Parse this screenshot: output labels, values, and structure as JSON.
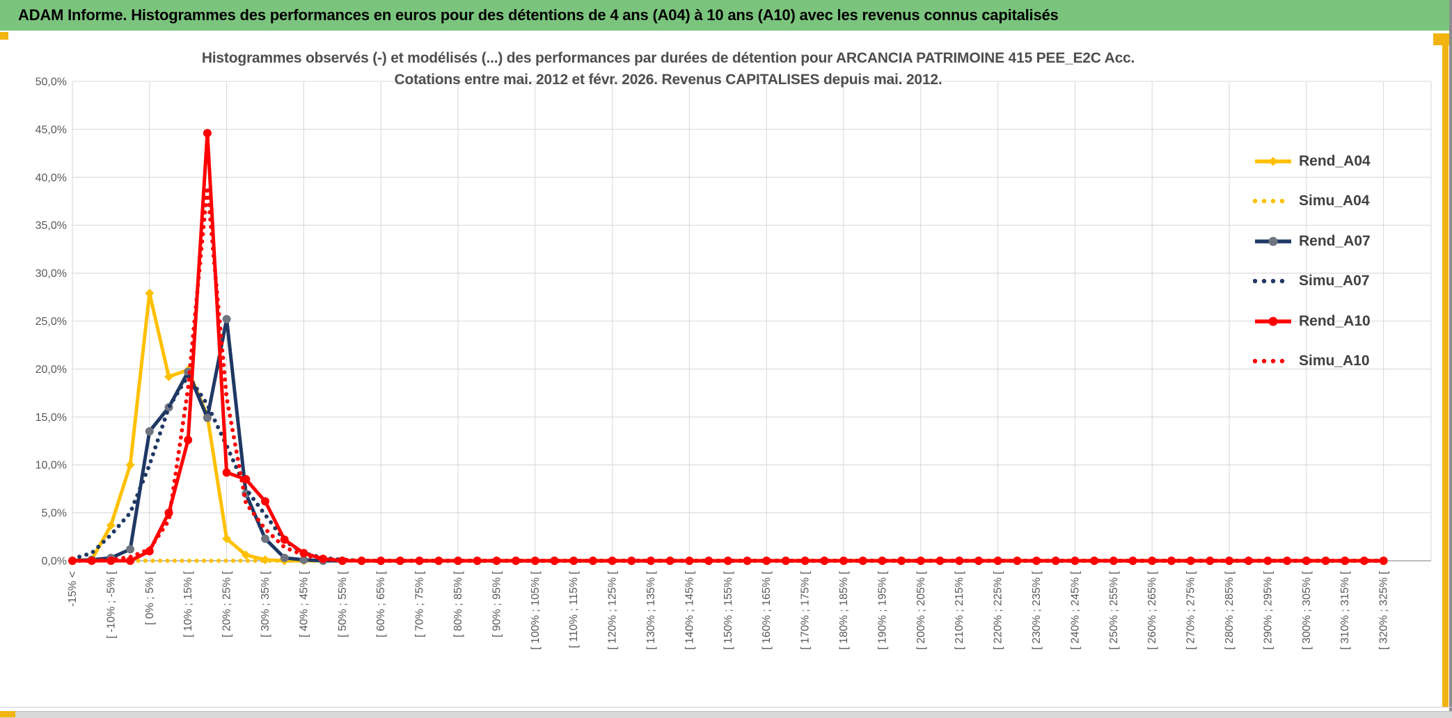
{
  "header": {
    "title": "ADAM Informe. Histogrammes des performances en euros pour des détentions de 4 ans (A04) à 10 ans (A10) avec les revenus connus capitalisés"
  },
  "chart_data": {
    "type": "line",
    "title_line1": "Histogrammes observés (-) et modélisés (...) des performances par durées de détention pour ARCANCIA PATRIMOINE 415 PEE_E2C Acc.",
    "title_line2": "Cotations entre mai. 2012 et févr. 2026. Revenus CAPITALISES depuis mai. 2012.",
    "ylim": [
      0,
      50
    ],
    "y_tick_step": 5,
    "y_tick_labels": [
      "0,0%",
      "5,0%",
      "10,0%",
      "15,0%",
      "20,0%",
      "25,0%",
      "30,0%",
      "35,0%",
      "40,0%",
      "45,0%",
      "50,0%"
    ],
    "grid": true,
    "legend_position": "right",
    "bucket_count": 69,
    "x_label_every": 2,
    "x_gridline_every": 4,
    "values_padded_with_zeros_to": 69,
    "x_labels": [
      "-15% <",
      "[ -10% ; -5% [",
      "[ 0% ; 5% [",
      "[ 10% ; 15% [",
      "[ 20% ; 25% [",
      "[ 30% ; 35% [",
      "[ 40% ; 45% [",
      "[ 50% ; 55% [",
      "[ 60% ; 65% [",
      "[ 70% ; 75% [",
      "[ 80% ; 85% [",
      "[ 90% ; 95% [",
      "[ 100% ; 105% [",
      "[ 110% ; 115% [",
      "[ 120% ; 125% [",
      "[ 130% ; 135% [",
      "[ 140% ; 145% [",
      "[ 150% ; 155% [",
      "[ 160% ; 165% [",
      "[ 170% ; 175% [",
      "[ 180% ; 185% [",
      "[ 190% ; 195% [",
      "[ 200% ; 205% [",
      "[ 210% ; 215% [",
      "[ 220% ; 225% [",
      "[ 230% ; 235% [",
      "[ 240% ; 245% [",
      "[ 250% ; 255% [",
      "[ 260% ; 265% [",
      "[ 270% ; 275% [",
      "[ 280% ; 285% [",
      "[ 290% ; 295% [",
      "[ 300% ; 305% [",
      "[ 310% ; 315% [",
      "[ 320% ; 325% ["
    ],
    "series": [
      {
        "name": "Rend_A04",
        "color": "#FFC000",
        "style": "solid",
        "marker": "diamond",
        "marker_color": "#FFC000",
        "values": [
          0,
          0.1,
          3.7,
          10,
          27.9,
          19.2,
          19.9,
          15.1,
          2.3,
          0.6,
          0.1
        ]
      },
      {
        "name": "Simu_A04",
        "color": "#FFC000",
        "style": "dotted",
        "marker": "none",
        "values": [
          0
        ]
      },
      {
        "name": "Rend_A07",
        "color": "#1F3864",
        "style": "solid",
        "marker": "circle",
        "marker_color": "#6F7480",
        "values": [
          0,
          0.1,
          0.3,
          1.2,
          13.5,
          16,
          19.7,
          14.9,
          25.2,
          7,
          2.3,
          0.3,
          0.1
        ]
      },
      {
        "name": "Simu_A07",
        "color": "#1F3864",
        "style": "dotted",
        "marker": "none",
        "values": [
          0.2,
          0.8,
          2.7,
          5,
          10,
          16,
          19.3,
          16.3,
          12,
          7.5,
          4.8,
          2.1,
          0.8,
          0.3,
          0.1
        ]
      },
      {
        "name": "Rend_A10",
        "color": "#FF0000",
        "style": "solid",
        "marker": "circle",
        "marker_color": "#FF0000",
        "values": [
          0,
          0,
          0,
          0,
          1,
          5,
          12.6,
          44.6,
          9.2,
          8.5,
          6.2,
          2.2,
          0.8,
          0.2
        ]
      },
      {
        "name": "Simu_A10",
        "color": "#FF0000",
        "style": "dotted",
        "marker": "none",
        "values": [
          0,
          0,
          0.1,
          0.4,
          1.2,
          4.2,
          18,
          39,
          17,
          6,
          3.3,
          1.4,
          0.6,
          0.2,
          0.1
        ]
      }
    ]
  },
  "colors": {
    "header_bg": "#7BC47D",
    "accent_gold": "#F2B411",
    "grid": "#D9D9D9",
    "axis_zero": "#A6A6A6",
    "tick_text": "#595959",
    "title_text": "#4E4E4E",
    "legend_text": "#404040",
    "edge_gray": "#8C8C8C",
    "bottom_strip": "#D9D9D9"
  }
}
